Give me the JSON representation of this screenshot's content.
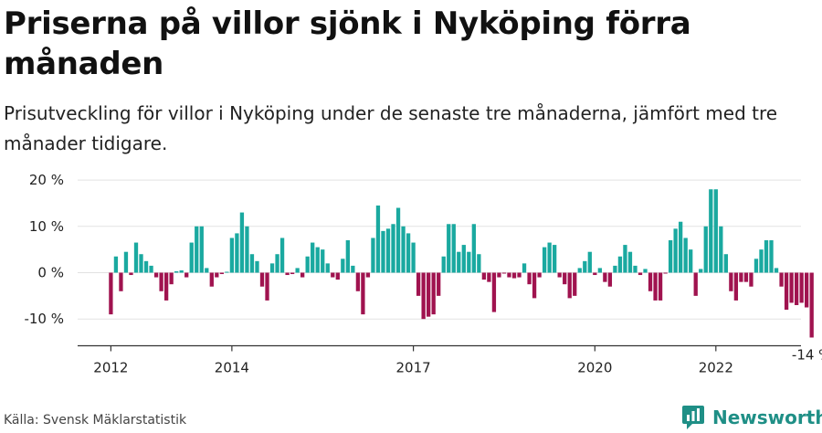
{
  "title": "Priserna på villor sjönk i Nyköping förra månaden",
  "subtitle": "Prisutveckling för villor i Nyköping under de senaste tre månaderna, jämfört med tre månader tidigare.",
  "source": "Källa: Svensk Mäklarstatistik",
  "brand": "Newsworthy",
  "colors": {
    "positive": "#1aa9a0",
    "negative": "#a0134f",
    "grid": "#e2e2e2",
    "axis": "#333333",
    "brand": "#1f8f86"
  },
  "chart_data": {
    "type": "bar",
    "x_start": "2012-01",
    "ylabel": "",
    "xlabel": "",
    "ylim": [
      -15,
      20
    ],
    "y_ticks": [
      -10,
      0,
      10,
      20
    ],
    "y_tick_labels": [
      "-10 %",
      "0 %",
      "10 %",
      "20 %"
    ],
    "x_tick_labels": [
      "2012",
      "2014",
      "2017",
      "2020",
      "2022"
    ],
    "x_tick_indices": [
      0,
      24,
      60,
      96,
      120
    ],
    "last_label": "-14 %",
    "grid": true,
    "values": [
      -9,
      3.5,
      -4,
      4.5,
      -0.5,
      6.5,
      4,
      2.5,
      1.5,
      -1,
      -4,
      -6,
      -2.5,
      0.3,
      0.5,
      -1,
      6.5,
      10,
      10,
      1,
      -3,
      -1,
      -0.3,
      0.2,
      7.5,
      8.5,
      13,
      10,
      4,
      2.5,
      -3,
      -6,
      2,
      4,
      7.5,
      -0.5,
      -0.3,
      1,
      -1,
      3.5,
      6.5,
      5.5,
      5,
      2,
      -1,
      -1.5,
      3,
      7,
      1.5,
      -4,
      -9,
      -1,
      7.5,
      14.5,
      9,
      9.5,
      10.5,
      14,
      10,
      8.5,
      6.5,
      -5,
      -10,
      -9.5,
      -9,
      -5,
      3.5,
      10.5,
      10.5,
      4.5,
      6,
      4.5,
      10.5,
      4,
      -1.5,
      -2,
      -8.5,
      -1,
      -0.2,
      -1,
      -1.2,
      -1,
      2,
      -2.5,
      -5.5,
      -1,
      5.5,
      6.5,
      6,
      -1,
      -2.5,
      -5.5,
      -5,
      1,
      2.5,
      4.5,
      -0.5,
      1,
      -2,
      -3,
      1.5,
      3.5,
      6,
      4.5,
      1.5,
      -0.5,
      0.8,
      -4,
      -6,
      -6,
      -0.2,
      7,
      9.5,
      11,
      7.5,
      5,
      -5,
      0.8,
      10,
      18,
      18,
      10,
      4,
      -4,
      -6,
      -2,
      -2,
      -3,
      3,
      5,
      7,
      7,
      1,
      -3,
      -8,
      -6.5,
      -7,
      -6.5,
      -7.5,
      -14
    ]
  }
}
